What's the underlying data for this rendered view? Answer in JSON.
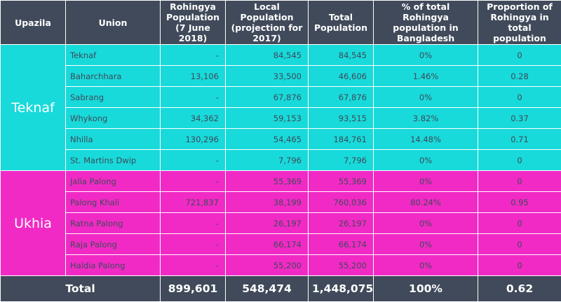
{
  "headers": {
    "upazila": "Upazila",
    "union": "Union",
    "rohingya": "Rohingya Population (7 June 2018)",
    "local": "Local Population (projection for 2017)",
    "total": "Total Population",
    "pct": "% of total Rohingya population in Bangladesh",
    "proportion": "Proportion of Rohingya in total population"
  },
  "groups": [
    {
      "upazila": "Teknaf",
      "color": "#18dada",
      "rows": [
        {
          "union": "Teknaf",
          "rohingya": "-",
          "local": "84,545",
          "total": "84,545",
          "pct": "0%",
          "proportion": "0"
        },
        {
          "union": "Baharchhara",
          "rohingya": "13,106",
          "local": "33,500",
          "total": "46,606",
          "pct": "1.46%",
          "proportion": "0.28"
        },
        {
          "union": "Sabrang",
          "rohingya": "-",
          "local": "67,876",
          "total": "67,876",
          "pct": "0%",
          "proportion": "0"
        },
        {
          "union": "Whykong",
          "rohingya": "34,362",
          "local": "59,153",
          "total": "93,515",
          "pct": "3.82%",
          "proportion": "0.37"
        },
        {
          "union": "Nhilla",
          "rohingya": "130,296",
          "local": "54,465",
          "total": "184,761",
          "pct": "14.48%",
          "proportion": "0.71"
        },
        {
          "union": "St. Martins Dwip",
          "rohingya": "-",
          "local": "7,796",
          "total": "7,796",
          "pct": "0%",
          "proportion": "0"
        }
      ]
    },
    {
      "upazila": "Ukhia",
      "color": "#f12ac5",
      "rows": [
        {
          "union": "Jalia Palong",
          "rohingya": "-",
          "local": "55,369",
          "total": "55,369",
          "pct": "0%",
          "proportion": "0"
        },
        {
          "union": "Palong Khali",
          "rohingya": "721,837",
          "local": "38,199",
          "total": "760,036",
          "pct": "80.24%",
          "proportion": "0.95"
        },
        {
          "union": "Ratna Palong",
          "rohingya": "-",
          "local": "26,197",
          "total": "26,197",
          "pct": "0%",
          "proportion": "0"
        },
        {
          "union": "Raja Palong",
          "rohingya": "-",
          "local": "66,174",
          "total": "66,174",
          "pct": "0%",
          "proportion": "0"
        },
        {
          "union": "Haldia Palong",
          "rohingya": "-",
          "local": "55,200",
          "total": "55,200",
          "pct": "0%",
          "proportion": "0"
        }
      ]
    }
  ],
  "totals": {
    "label": "Total",
    "rohingya": "899,601",
    "local": "548,474",
    "total": "1,448,075",
    "pct": "100%",
    "proportion": "0.62"
  }
}
